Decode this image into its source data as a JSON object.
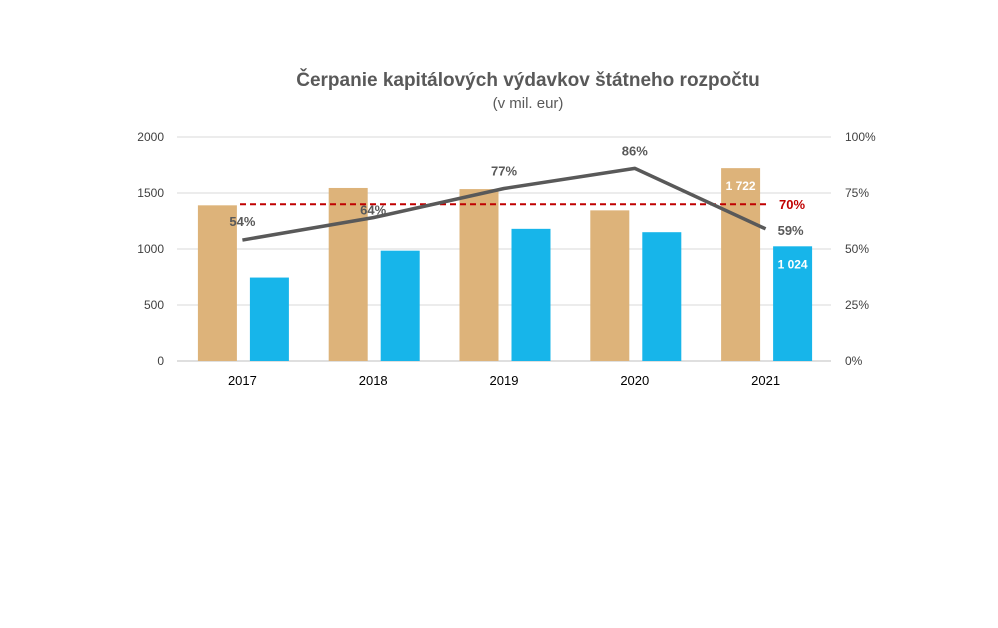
{
  "chart_data": {
    "type": "bar",
    "title": "Čerpanie kapitálových výdavkov štátneho rozpočtu",
    "subtitle": "(v mil. eur)",
    "categories": [
      "2017",
      "2018",
      "2019",
      "2020",
      "2021"
    ],
    "ylim": [
      0,
      2000
    ],
    "yticks": [
      "0",
      "500",
      "1000",
      "1500",
      "2000"
    ],
    "y2lim": [
      0,
      100
    ],
    "y2ticks": [
      "0%",
      "25%",
      "50%",
      "75%",
      "100%"
    ],
    "grid": true,
    "series": [
      {
        "kind": "bar",
        "color": "#DDB37A",
        "values": [
          1390,
          1545,
          1535,
          1345,
          1722
        ],
        "labels": [
          "",
          "",
          "",
          "",
          "1 722"
        ]
      },
      {
        "kind": "bar",
        "color": "#17B5EA",
        "values": [
          745,
          985,
          1180,
          1150,
          1024
        ],
        "labels": [
          "",
          "",
          "",
          "",
          "1 024"
        ]
      },
      {
        "kind": "line",
        "axis": "right",
        "color": "#595959",
        "values": [
          54,
          64,
          77,
          86,
          59
        ],
        "labels": [
          "54%",
          "64%",
          "77%",
          "86%",
          "59%"
        ]
      }
    ],
    "target": {
      "value": 70,
      "label": "70%",
      "color": "#C00000",
      "style": "dashed",
      "axis": "right"
    }
  }
}
